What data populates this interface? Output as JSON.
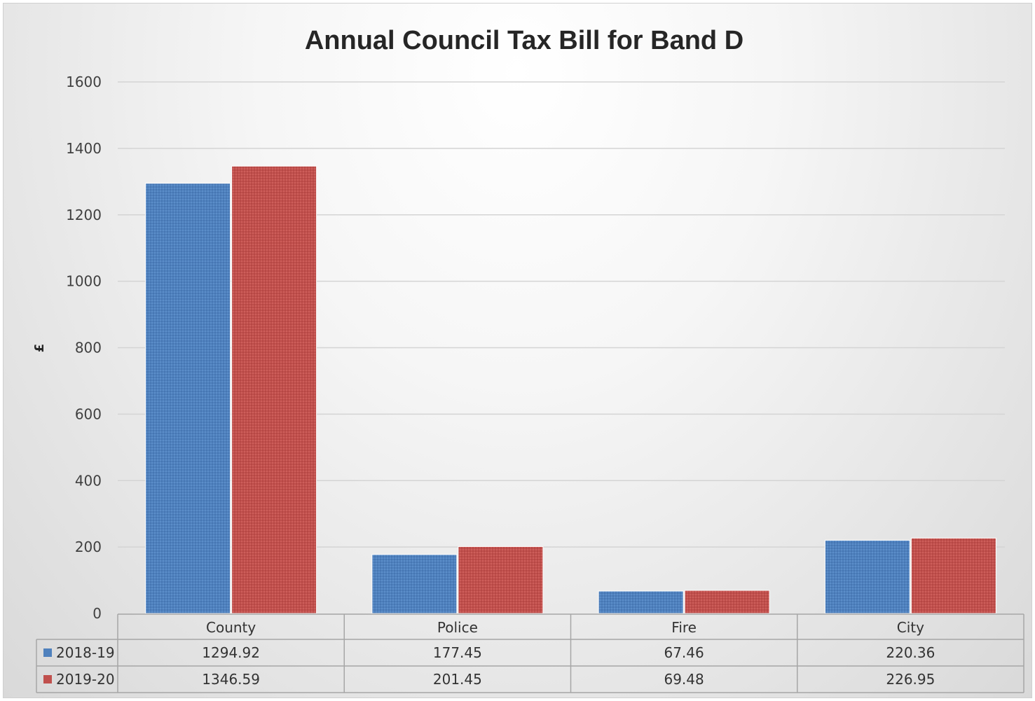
{
  "chart_data": {
    "type": "bar",
    "title": "Annual Council Tax Bill for Band D",
    "ylabel": "£",
    "xlabel": "",
    "ylim": [
      0,
      1600
    ],
    "yticks": [
      0,
      200,
      400,
      600,
      800,
      1000,
      1200,
      1400,
      1600
    ],
    "grid": true,
    "legend": "data-table",
    "categories": [
      "County",
      "Police",
      "Fire",
      "City"
    ],
    "series": [
      {
        "name": "2018-19",
        "color": "#4f81bd",
        "values": [
          1294.92,
          177.45,
          67.46,
          220.36
        ],
        "labels": [
          "1294.92",
          "177.45",
          "67.46",
          "220.36"
        ]
      },
      {
        "name": "2019-20",
        "color": "#c0504d",
        "values": [
          1346.59,
          201.45,
          69.48,
          226.95
        ],
        "labels": [
          "1346.59",
          "201.45",
          "69.48",
          "226.95"
        ]
      }
    ]
  }
}
